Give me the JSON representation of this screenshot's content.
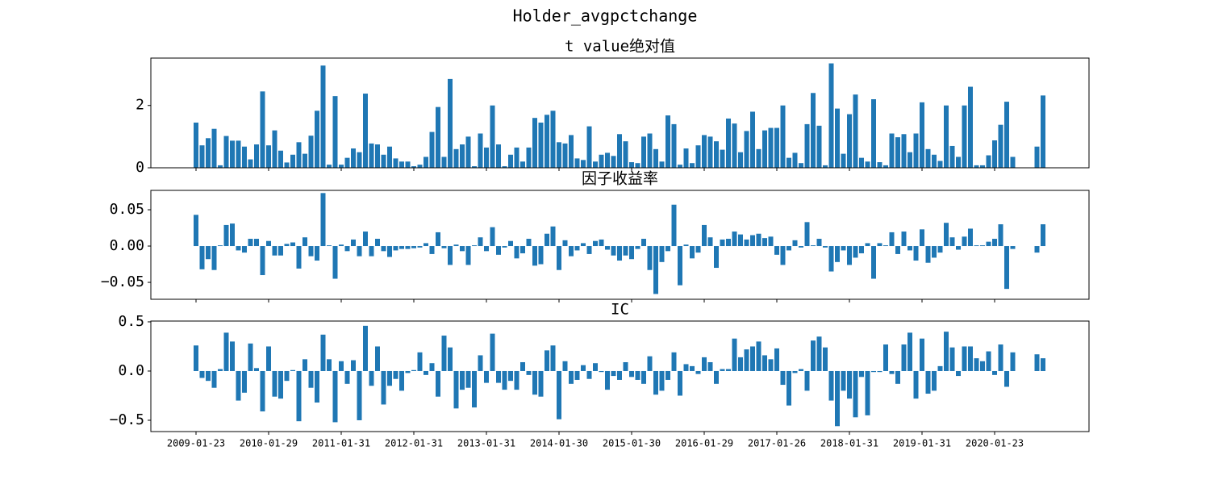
{
  "title": "Holder_avgpctchange",
  "chart_data": [
    {
      "type": "bar",
      "title": "t value绝对值",
      "color": "#1f77b4",
      "ylim": [
        0,
        3.52
      ],
      "yticks": [
        0,
        2
      ],
      "values": [
        1.45,
        0.72,
        0.95,
        1.25,
        0.08,
        1.02,
        0.87,
        0.87,
        0.68,
        0.27,
        0.75,
        2.45,
        0.72,
        1.2,
        0.55,
        0.17,
        0.42,
        0.82,
        0.45,
        1.03,
        1.83,
        3.28,
        0.1,
        2.3,
        0.1,
        0.32,
        0.62,
        0.5,
        2.38,
        0.78,
        0.75,
        0.42,
        0.68,
        0.3,
        0.2,
        0.2,
        0.05,
        0.1,
        0.35,
        1.15,
        1.95,
        0.35,
        2.85,
        0.6,
        0.75,
        1.0,
        0.05,
        1.1,
        0.65,
        2.0,
        0.75,
        0.05,
        0.42,
        0.65,
        0.2,
        0.65,
        1.6,
        1.45,
        1.7,
        1.83,
        0.82,
        0.78,
        1.05,
        0.3,
        0.25,
        1.33,
        0.2,
        0.42,
        0.48,
        0.38,
        1.08,
        0.85,
        0.18,
        0.15,
        1.0,
        1.1,
        0.6,
        0.2,
        1.68,
        1.4,
        0.1,
        0.62,
        0.15,
        0.72,
        1.05,
        1.0,
        0.85,
        0.58,
        1.58,
        1.42,
        0.5,
        1.18,
        1.8,
        0.6,
        1.2,
        1.28,
        1.28,
        2.0,
        0.32,
        0.48,
        0.15,
        1.4,
        2.4,
        1.35,
        0.08,
        3.35,
        1.9,
        0.45,
        1.72,
        2.35,
        0.32,
        0.2,
        2.2,
        0.18,
        0.08,
        1.1,
        0.98,
        1.08,
        0.5,
        1.1,
        2.1,
        0.6,
        0.42,
        0.22,
        2.0,
        0.7,
        0.35,
        2.0,
        2.6,
        0.08,
        0.08,
        0.4,
        0.88,
        1.38,
        2.12,
        0.35,
        null,
        null,
        null,
        0.68,
        2.32
      ]
    },
    {
      "type": "bar",
      "title": "因子收益率",
      "color": "#1f77b4",
      "ylim": [
        -0.0733,
        0.0767
      ],
      "yticks": [
        {
          "value": 0.05,
          "label": "0.05"
        },
        {
          "value": 0,
          "label": "0.00"
        },
        {
          "value": -0.05,
          "label": "−0.05"
        }
      ],
      "values": [
        0.043,
        -0.032,
        -0.018,
        -0.033,
        0.001,
        0.029,
        0.031,
        -0.006,
        -0.009,
        0.01,
        0.01,
        -0.04,
        0.007,
        -0.013,
        -0.013,
        0.003,
        0.005,
        -0.031,
        0.012,
        -0.014,
        -0.02,
        0.073,
        0.001,
        -0.045,
        0.002,
        -0.007,
        0.009,
        -0.014,
        0.02,
        -0.014,
        0.01,
        -0.007,
        -0.015,
        -0.006,
        -0.004,
        -0.004,
        -0.003,
        -0.002,
        0.004,
        -0.011,
        0.019,
        -0.003,
        -0.026,
        0.002,
        -0.007,
        -0.026,
        0.001,
        0.012,
        -0.007,
        0.026,
        -0.012,
        -0.002,
        0.007,
        -0.017,
        -0.01,
        0.01,
        -0.027,
        -0.025,
        0.017,
        0.027,
        -0.033,
        0.008,
        -0.014,
        -0.006,
        0.004,
        -0.011,
        0.007,
        0.009,
        -0.005,
        -0.013,
        -0.02,
        -0.013,
        -0.018,
        -0.004,
        0.01,
        -0.033,
        -0.066,
        -0.022,
        -0.007,
        0.057,
        -0.054,
        0.002,
        -0.017,
        -0.009,
        0.029,
        0.012,
        -0.03,
        0.009,
        0.01,
        0.02,
        0.016,
        0.009,
        0.015,
        0.017,
        0.011,
        0.013,
        -0.012,
        -0.026,
        -0.006,
        0.008,
        -0.002,
        0.033,
        0.001,
        0.01,
        -0.002,
        -0.035,
        -0.022,
        -0.006,
        -0.026,
        -0.016,
        -0.01,
        0.004,
        -0.045,
        0.004,
        0.001,
        0.019,
        -0.011,
        0.02,
        -0.006,
        -0.02,
        0.023,
        -0.023,
        -0.016,
        -0.009,
        0.032,
        0.012,
        -0.005,
        0.013,
        0.024,
        0.001,
        0.001,
        0.006,
        0.01,
        0.03,
        -0.059,
        -0.004,
        null,
        null,
        null,
        -0.009,
        0.03
      ]
    },
    {
      "type": "bar",
      "title": "IC",
      "color": "#1f77b4",
      "ylim": [
        -0.615,
        0.508
      ],
      "yticks": [
        {
          "value": 0.5,
          "label": "0.5"
        },
        {
          "value": 0,
          "label": "0.0"
        },
        {
          "value": -0.5,
          "label": "−0.5"
        }
      ],
      "categories": [
        "2009-01-23",
        null,
        null,
        null,
        null,
        null,
        null,
        null,
        null,
        null,
        null,
        null,
        "2010-01-29",
        null,
        null,
        null,
        null,
        null,
        null,
        null,
        null,
        null,
        null,
        null,
        "2011-01-31",
        null,
        null,
        null,
        null,
        null,
        null,
        null,
        null,
        null,
        null,
        null,
        "2012-01-31",
        null,
        null,
        null,
        null,
        null,
        null,
        null,
        null,
        null,
        null,
        null,
        "2013-01-31",
        null,
        null,
        null,
        null,
        null,
        null,
        null,
        null,
        null,
        null,
        null,
        "2014-01-30",
        null,
        null,
        null,
        null,
        null,
        null,
        null,
        null,
        null,
        null,
        null,
        "2015-01-30",
        null,
        null,
        null,
        null,
        null,
        null,
        null,
        null,
        null,
        null,
        null,
        "2016-01-29",
        null,
        null,
        null,
        null,
        null,
        null,
        null,
        null,
        null,
        null,
        null,
        "2017-01-26",
        null,
        null,
        null,
        null,
        null,
        null,
        null,
        null,
        null,
        null,
        null,
        "2018-01-31",
        null,
        null,
        null,
        null,
        null,
        null,
        null,
        null,
        null,
        null,
        null,
        "2019-01-31",
        null,
        null,
        null,
        null,
        null,
        null,
        null,
        null,
        null,
        null,
        null,
        "2020-01-23",
        null,
        null,
        null,
        null,
        null,
        null,
        null,
        null
      ],
      "values": [
        0.26,
        -0.07,
        -0.1,
        -0.17,
        0.02,
        0.39,
        0.3,
        -0.3,
        -0.22,
        0.28,
        0.03,
        -0.41,
        0.25,
        -0.26,
        -0.28,
        -0.1,
        0.01,
        -0.51,
        0.12,
        -0.17,
        -0.32,
        0.37,
        0.12,
        -0.52,
        0.1,
        -0.13,
        0.11,
        -0.5,
        0.46,
        -0.15,
        0.25,
        -0.34,
        -0.15,
        -0.08,
        -0.2,
        -0.02,
        0.01,
        0.19,
        -0.04,
        0.08,
        -0.26,
        0.36,
        0.24,
        -0.38,
        -0.19,
        -0.17,
        -0.37,
        0.16,
        -0.12,
        0.38,
        -0.12,
        -0.19,
        -0.1,
        -0.19,
        0.09,
        -0.04,
        -0.24,
        -0.26,
        0.21,
        0.26,
        -0.49,
        0.1,
        -0.13,
        -0.09,
        0.06,
        -0.08,
        0.08,
        -0.01,
        -0.19,
        -0.05,
        -0.09,
        0.09,
        -0.06,
        -0.09,
        -0.13,
        0.15,
        -0.24,
        -0.2,
        -0.09,
        0.19,
        -0.25,
        0.07,
        0.05,
        -0.03,
        0.14,
        0.09,
        -0.13,
        0.02,
        0.02,
        0.33,
        0.14,
        0.22,
        0.25,
        0.3,
        0.16,
        0.12,
        0.23,
        -0.14,
        -0.35,
        -0.02,
        0.02,
        -0.2,
        0.31,
        0.35,
        0.24,
        -0.3,
        -0.56,
        -0.2,
        -0.28,
        -0.47,
        -0.06,
        -0.45,
        -0.01,
        -0.01,
        0.27,
        -0.03,
        -0.13,
        0.27,
        0.39,
        -0.28,
        0.33,
        -0.23,
        -0.2,
        0.05,
        0.4,
        0.24,
        -0.05,
        0.25,
        0.25,
        0.13,
        0.1,
        0.2,
        -0.04,
        0.27,
        -0.16,
        0.19,
        null,
        null,
        null,
        0.17,
        0.13
      ]
    }
  ]
}
